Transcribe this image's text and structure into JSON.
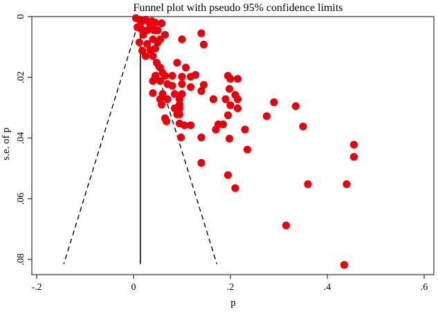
{
  "chart_data": {
    "type": "scatter",
    "title": "Funnel plot with pseudo 95% confidence limits",
    "xlabel": "p",
    "ylabel": "s.e. of p",
    "xlim": [
      -0.21,
      0.62
    ],
    "ylim": [
      0,
      0.085
    ],
    "y_inverted": true,
    "x_ticks": [
      {
        "value": -0.2,
        "label": "-.2"
      },
      {
        "value": 0,
        "label": "0"
      },
      {
        "value": 0.2,
        "label": ".2"
      },
      {
        "value": 0.4,
        "label": ".4"
      },
      {
        "value": 0.6,
        "label": ".6"
      }
    ],
    "y_ticks": [
      {
        "value": 0,
        "label": "0"
      },
      {
        "value": 0.02,
        "label": ".02"
      },
      {
        "value": 0.04,
        "label": ".04"
      },
      {
        "value": 0.06,
        "label": ".06"
      },
      {
        "value": 0.08,
        "label": ".08"
      }
    ],
    "pooled_estimate": 0.014,
    "ci_lines": [
      {
        "name": "lower 95% limit",
        "points": [
          [
            0.014,
            0
          ],
          [
            -0.144,
            0.0815
          ]
        ]
      },
      {
        "name": "upper 95% limit",
        "points": [
          [
            0.014,
            0
          ],
          [
            0.172,
            0.0815
          ]
        ]
      }
    ],
    "series": [
      {
        "name": "studies",
        "color": "#e8000b",
        "points": [
          [
            0.005,
            0.0005
          ],
          [
            0.012,
            0.001
          ],
          [
            0.018,
            0.0015
          ],
          [
            0.025,
            0.001
          ],
          [
            0.032,
            0.002
          ],
          [
            0.038,
            0.0015
          ],
          [
            0.045,
            0.002
          ],
          [
            0.058,
            0.0022
          ],
          [
            0.008,
            0.0035
          ],
          [
            0.015,
            0.004
          ],
          [
            0.022,
            0.005
          ],
          [
            0.028,
            0.0045
          ],
          [
            0.035,
            0.004
          ],
          [
            0.042,
            0.0045
          ],
          [
            0.05,
            0.0045
          ],
          [
            0.02,
            0.006
          ],
          [
            0.065,
            0.006
          ],
          [
            0.04,
            0.0075
          ],
          [
            0.055,
            0.0075
          ],
          [
            0.012,
            0.0085
          ],
          [
            0.028,
            0.009
          ],
          [
            0.05,
            0.0085
          ],
          [
            0.1,
            0.0075
          ],
          [
            0.14,
            0.0055
          ],
          [
            0.145,
            0.0092
          ],
          [
            0.018,
            0.0112
          ],
          [
            0.035,
            0.011
          ],
          [
            0.045,
            0.0105
          ],
          [
            0.025,
            0.013
          ],
          [
            0.04,
            0.013
          ],
          [
            0.048,
            0.0152
          ],
          [
            0.09,
            0.0152
          ],
          [
            0.108,
            0.0168
          ],
          [
            0.055,
            0.0168
          ],
          [
            0.06,
            0.0185
          ],
          [
            0.045,
            0.0195
          ],
          [
            0.065,
            0.0195
          ],
          [
            0.08,
            0.0195
          ],
          [
            0.1,
            0.0198
          ],
          [
            0.118,
            0.0198
          ],
          [
            0.128,
            0.0192
          ],
          [
            0.195,
            0.0195
          ],
          [
            0.2,
            0.0205
          ],
          [
            0.215,
            0.0205
          ],
          [
            0.04,
            0.0212
          ],
          [
            0.055,
            0.0212
          ],
          [
            0.07,
            0.0222
          ],
          [
            0.08,
            0.0228
          ],
          [
            0.1,
            0.0222
          ],
          [
            0.118,
            0.0232
          ],
          [
            0.145,
            0.0225
          ],
          [
            0.198,
            0.0238
          ],
          [
            0.04,
            0.0252
          ],
          [
            0.06,
            0.0255
          ],
          [
            0.085,
            0.0255
          ],
          [
            0.1,
            0.0255
          ],
          [
            0.14,
            0.0245
          ],
          [
            0.21,
            0.0258
          ],
          [
            0.055,
            0.0272
          ],
          [
            0.07,
            0.0272
          ],
          [
            0.095,
            0.0272
          ],
          [
            0.165,
            0.0272
          ],
          [
            0.19,
            0.0272
          ],
          [
            0.215,
            0.0272
          ],
          [
            0.058,
            0.029
          ],
          [
            0.095,
            0.029
          ],
          [
            0.085,
            0.0302
          ],
          [
            0.095,
            0.0302
          ],
          [
            0.2,
            0.0292
          ],
          [
            0.215,
            0.0302
          ],
          [
            0.29,
            0.0282
          ],
          [
            0.335,
            0.0295
          ],
          [
            0.09,
            0.0322
          ],
          [
            0.095,
            0.0322
          ],
          [
            0.195,
            0.0325
          ],
          [
            0.275,
            0.0328
          ],
          [
            0.065,
            0.0335
          ],
          [
            0.068,
            0.0345
          ],
          [
            0.095,
            0.0352
          ],
          [
            0.105,
            0.0358
          ],
          [
            0.118,
            0.0358
          ],
          [
            0.175,
            0.0355
          ],
          [
            0.185,
            0.0355
          ],
          [
            0.17,
            0.0372
          ],
          [
            0.23,
            0.0372
          ],
          [
            0.35,
            0.0362
          ],
          [
            0.098,
            0.0398
          ],
          [
            0.14,
            0.0398
          ],
          [
            0.198,
            0.0402
          ],
          [
            0.235,
            0.0438
          ],
          [
            0.455,
            0.0422
          ],
          [
            0.455,
            0.0462
          ],
          [
            0.14,
            0.0482
          ],
          [
            0.195,
            0.0522
          ],
          [
            0.36,
            0.0552
          ],
          [
            0.44,
            0.0552
          ],
          [
            0.21,
            0.0565
          ],
          [
            0.315,
            0.0688
          ],
          [
            0.435,
            0.0818
          ]
        ]
      }
    ]
  }
}
